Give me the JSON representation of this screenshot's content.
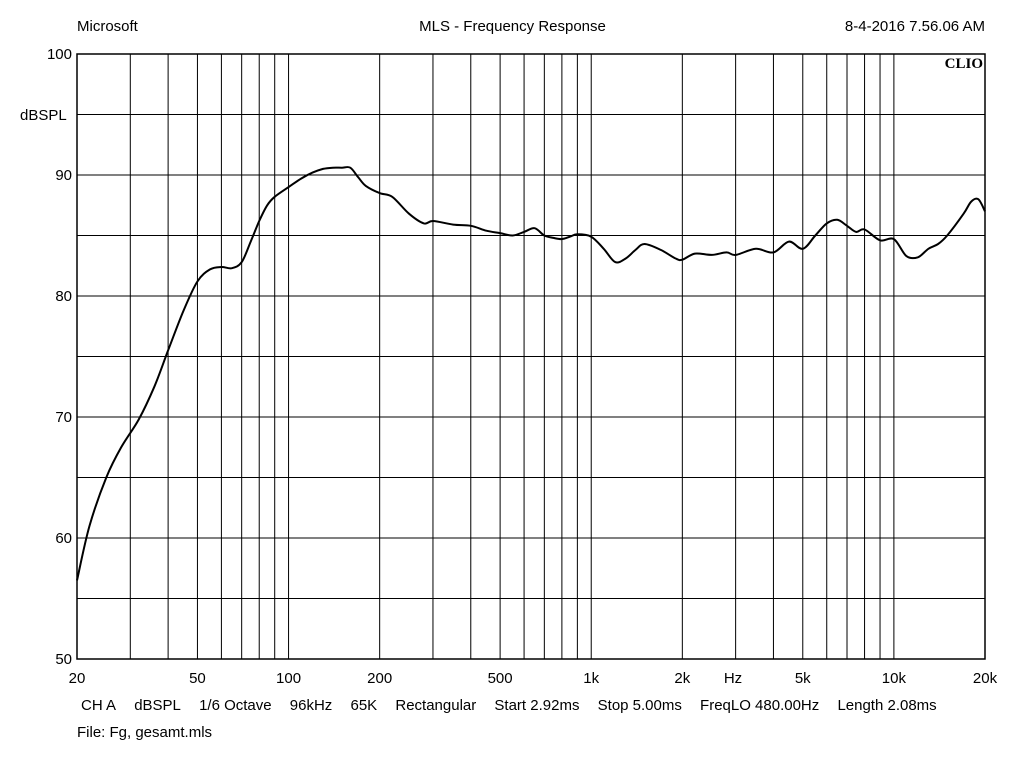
{
  "header": {
    "left": "Microsoft",
    "title": "MLS - Frequency Response",
    "datetime": "8-4-2016 7.56.06 AM"
  },
  "watermark": "CLIO",
  "colors": {
    "background": "#ffffff",
    "grid": "#000000",
    "curve": "#000000"
  },
  "chart_data": {
    "type": "line",
    "title": "MLS - Frequency Response",
    "xlabel": "Hz",
    "ylabel": "dBSPL",
    "x_scale": "log",
    "xlim": [
      20,
      20000
    ],
    "ylim": [
      50,
      100
    ],
    "grid": true,
    "x_ticks": [
      {
        "value": 20,
        "label": "20"
      },
      {
        "value": 50,
        "label": "50"
      },
      {
        "value": 100,
        "label": "100"
      },
      {
        "value": 200,
        "label": "200"
      },
      {
        "value": 500,
        "label": "500"
      },
      {
        "value": 1000,
        "label": "1k"
      },
      {
        "value": 2000,
        "label": "2k"
      },
      {
        "value": 5000,
        "label": "5k"
      },
      {
        "value": 10000,
        "label": "10k"
      },
      {
        "value": 20000,
        "label": "20k"
      }
    ],
    "y_ticks": [
      {
        "value": 100,
        "label": "100"
      },
      {
        "value": 90,
        "label": "90"
      },
      {
        "value": 80,
        "label": "80"
      },
      {
        "value": 70,
        "label": "70"
      },
      {
        "value": 60,
        "label": "60"
      },
      {
        "value": 50,
        "label": "50"
      }
    ],
    "series": [
      {
        "x": [
          20,
          22,
          25,
          28,
          32,
          36,
          40,
          45,
          50,
          55,
          60,
          65,
          70,
          75,
          80,
          85,
          90,
          100,
          110,
          120,
          130,
          140,
          150,
          160,
          170,
          180,
          200,
          220,
          250,
          280,
          300,
          350,
          400,
          450,
          500,
          550,
          600,
          650,
          700,
          750,
          800,
          850,
          900,
          1000,
          1100,
          1200,
          1300,
          1400,
          1500,
          1700,
          1900,
          2000,
          2200,
          2500,
          2800,
          3000,
          3500,
          4000,
          4500,
          5000,
          5500,
          6000,
          6500,
          7000,
          7500,
          8000,
          9000,
          10000,
          11000,
          12000,
          13000,
          14000,
          15000,
          17000,
          18000,
          19000,
          20000
        ],
        "y": [
          56.5,
          61.0,
          65.0,
          67.5,
          69.8,
          72.5,
          75.5,
          78.8,
          81.2,
          82.2,
          82.4,
          82.3,
          82.8,
          84.5,
          86.2,
          87.5,
          88.2,
          89.0,
          89.7,
          90.2,
          90.5,
          90.6,
          90.6,
          90.6,
          89.8,
          89.1,
          88.5,
          88.2,
          86.8,
          86.0,
          86.2,
          85.9,
          85.8,
          85.4,
          85.2,
          85.0,
          85.3,
          85.6,
          85.0,
          84.8,
          84.7,
          84.9,
          85.1,
          84.9,
          83.9,
          82.8,
          83.1,
          83.8,
          84.3,
          83.8,
          83.1,
          83.0,
          83.5,
          83.4,
          83.6,
          83.4,
          83.9,
          83.6,
          84.5,
          83.9,
          85.0,
          86.0,
          86.3,
          85.8,
          85.3,
          85.5,
          84.6,
          84.7,
          83.3,
          83.2,
          83.9,
          84.3,
          85.0,
          86.8,
          87.8,
          88.0,
          87.0
        ]
      }
    ]
  },
  "info_line": {
    "channel": "CH A",
    "units": "dBSPL",
    "smoothing": "1/6 Octave",
    "sample_rate": "96kHz",
    "mls_size": "65K",
    "window": "Rectangular",
    "start": "Start 2.92ms",
    "stop": "Stop 5.00ms",
    "freq_lo": "FreqLO 480.00Hz",
    "length": "Length 2.08ms"
  },
  "file_line": "File: Fg, gesamt.mls"
}
